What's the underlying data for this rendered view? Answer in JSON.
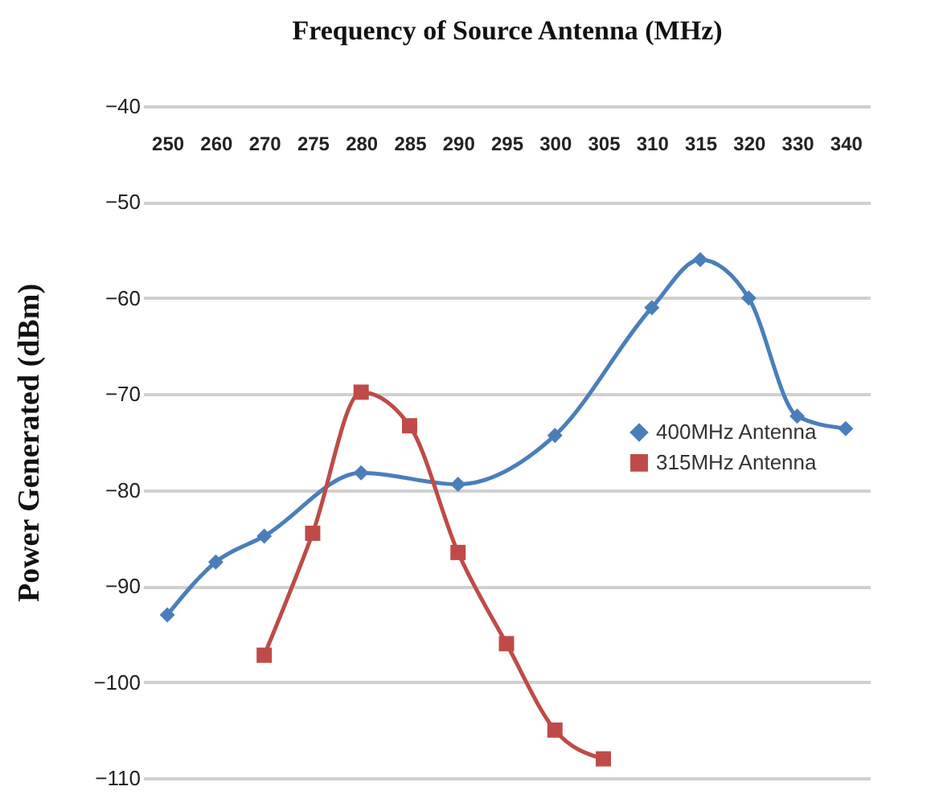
{
  "chart_data": {
    "type": "line",
    "xlabel": "Frequency of Source Antenna (MHz)",
    "ylabel": "Power Generated (dBm)",
    "categories": [
      "250",
      "260",
      "270",
      "275",
      "280",
      "285",
      "290",
      "295",
      "300",
      "305",
      "310",
      "315",
      "320",
      "330",
      "340"
    ],
    "series": [
      {
        "name": "400MHz Antenna",
        "color": "#4a7ebb",
        "marker": "diamond",
        "values": [
          -93,
          -87.5,
          -84.8,
          null,
          -78.2,
          null,
          -79.4,
          null,
          -74.3,
          null,
          -61,
          -56,
          -60,
          -72.3,
          -73.6
        ]
      },
      {
        "name": "315MHz Antenna",
        "color": "#be4b48",
        "marker": "square",
        "values": [
          null,
          null,
          -97.2,
          -84.5,
          -69.8,
          -73.3,
          -86.5,
          -96,
          -105,
          -108,
          null,
          null,
          null,
          null,
          null
        ]
      }
    ],
    "ylim": [
      -110,
      -40
    ],
    "yticks": [
      -110,
      -100,
      -90,
      -80,
      -70,
      -60,
      -50,
      -40
    ],
    "grid": "y",
    "legend": "right"
  }
}
